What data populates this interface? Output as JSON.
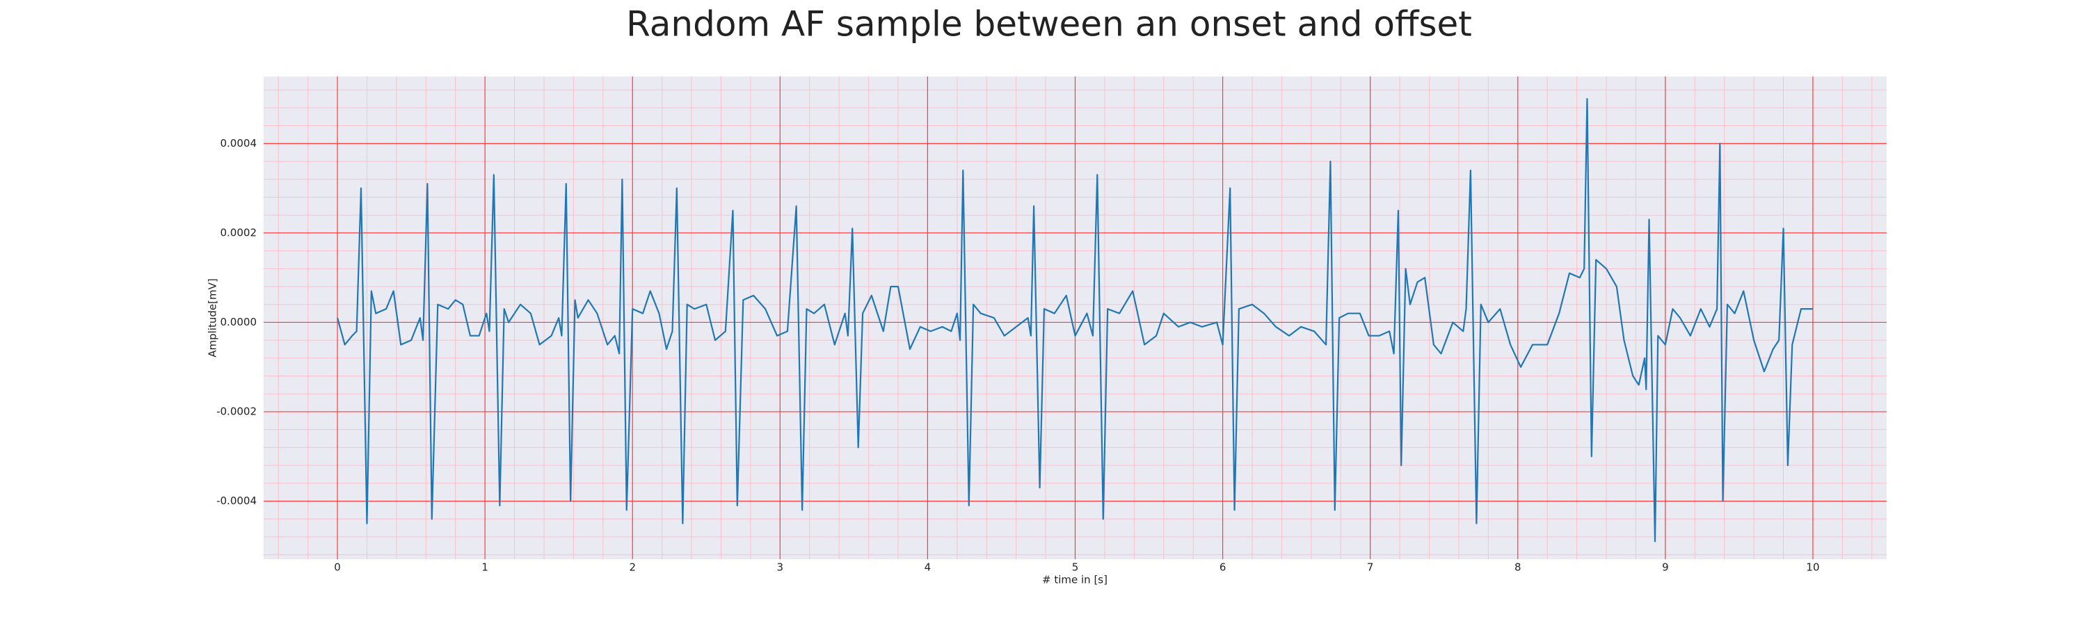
{
  "chart_data": {
    "type": "line",
    "title": "Random AF sample between an onset and offset",
    "xlabel": "# time in [s]",
    "ylabel": "Amplitude[mV]",
    "color": "#1f77b4",
    "background": "#eaeaf2",
    "grid": true,
    "grid_color": "#ff3b3b",
    "minor_grid": true,
    "minor_grid_color": "#ffbfc8",
    "xlim": [
      -0.5,
      10.5
    ],
    "xticks": [
      0,
      1,
      2,
      3,
      4,
      5,
      6,
      7,
      8,
      9,
      10
    ],
    "ylim": [
      -0.00053,
      0.00055
    ],
    "yticks": [
      -0.0004,
      -0.0002,
      {
        "value": 0,
        "label": "0.0000"
      },
      0.0002,
      0.0004
    ],
    "x": [
      0,
      0.05,
      0.1,
      0.13,
      0.16,
      0.2,
      0.23,
      0.26,
      0.33,
      0.38,
      0.43,
      0.5,
      0.56,
      0.58,
      0.61,
      0.64,
      0.68,
      0.75,
      0.8,
      0.85,
      0.9,
      0.96,
      1.01,
      1.03,
      1.06,
      1.1,
      1.13,
      1.16,
      1.24,
      1.31,
      1.37,
      1.45,
      1.5,
      1.52,
      1.55,
      1.58,
      1.61,
      1.63,
      1.7,
      1.76,
      1.83,
      1.88,
      1.91,
      1.93,
      1.96,
      2.0,
      2.07,
      2.12,
      2.18,
      2.23,
      2.27,
      2.3,
      2.34,
      2.37,
      2.42,
      2.5,
      2.56,
      2.63,
      2.68,
      2.71,
      2.75,
      2.82,
      2.9,
      2.98,
      3.05,
      3.11,
      3.15,
      3.18,
      3.23,
      3.3,
      3.37,
      3.44,
      3.46,
      3.49,
      3.53,
      3.56,
      3.62,
      3.7,
      3.75,
      3.8,
      3.88,
      3.95,
      4.02,
      4.1,
      4.16,
      4.2,
      4.22,
      4.24,
      4.28,
      4.31,
      4.36,
      4.45,
      4.52,
      4.6,
      4.68,
      4.7,
      4.72,
      4.76,
      4.79,
      4.86,
      4.94,
      5.0,
      5.08,
      5.12,
      5.15,
      5.19,
      5.22,
      5.3,
      5.39,
      5.47,
      5.55,
      5.6,
      5.7,
      5.78,
      5.86,
      5.96,
      6.0,
      6.05,
      6.08,
      6.11,
      6.2,
      6.28,
      6.36,
      6.45,
      6.53,
      6.62,
      6.7,
      6.73,
      6.76,
      6.79,
      6.85,
      6.93,
      6.99,
      7.06,
      7.13,
      7.16,
      7.19,
      7.21,
      7.24,
      7.27,
      7.32,
      7.37,
      7.43,
      7.48,
      7.56,
      7.63,
      7.65,
      7.68,
      7.72,
      7.75,
      7.8,
      7.88,
      7.95,
      8.02,
      8.1,
      8.2,
      8.28,
      8.35,
      8.42,
      8.45,
      8.47,
      8.5,
      8.53,
      8.6,
      8.67,
      8.72,
      8.78,
      8.82,
      8.86,
      8.87,
      8.89,
      8.93,
      8.95,
      9.0,
      9.05,
      9.1,
      9.17,
      9.24,
      9.3,
      9.35,
      9.37,
      9.39,
      9.42,
      9.47,
      9.53,
      9.6,
      9.67,
      9.73,
      9.77,
      9.8,
      9.83,
      9.86,
      9.92,
      10.0
    ],
    "values": [
      1e-05,
      -5e-05,
      -3e-05,
      -2e-05,
      0.0003,
      -0.00045,
      7e-05,
      2e-05,
      3e-05,
      7e-05,
      -5e-05,
      -4e-05,
      1e-05,
      -4e-05,
      0.00031,
      -0.00044,
      4e-05,
      3e-05,
      5e-05,
      4e-05,
      -3e-05,
      -3e-05,
      2e-05,
      -2e-05,
      0.00033,
      -0.00041,
      3e-05,
      0,
      4e-05,
      2e-05,
      -5e-05,
      -3e-05,
      1e-05,
      -3e-05,
      0.00031,
      -0.0004,
      5e-05,
      1e-05,
      5e-05,
      2e-05,
      -5e-05,
      -3e-05,
      -7e-05,
      0.00032,
      -0.00042,
      3e-05,
      2e-05,
      7e-05,
      2e-05,
      -6e-05,
      -2e-05,
      0.0003,
      -0.00045,
      4e-05,
      3e-05,
      4e-05,
      -4e-05,
      -2e-05,
      0.00025,
      -0.00041,
      5e-05,
      6e-05,
      3e-05,
      -3e-05,
      -2e-05,
      0.00026,
      -0.00042,
      3e-05,
      2e-05,
      4e-05,
      -5e-05,
      2e-05,
      -3e-05,
      0.00021,
      -0.00028,
      2e-05,
      6e-05,
      -2e-05,
      8e-05,
      8e-05,
      -6e-05,
      -1e-05,
      -2e-05,
      -1e-05,
      -2e-05,
      2e-05,
      -4e-05,
      0.00034,
      -0.00041,
      4e-05,
      2e-05,
      1e-05,
      -3e-05,
      -1e-05,
      1e-05,
      -3e-05,
      0.00026,
      -0.00037,
      3e-05,
      2e-05,
      6e-05,
      -3e-05,
      2e-05,
      -3e-05,
      0.00033,
      -0.00044,
      3e-05,
      2e-05,
      7e-05,
      -5e-05,
      -3e-05,
      2e-05,
      -1e-05,
      0,
      -1e-05,
      0,
      -5e-05,
      0.0003,
      -0.00042,
      3e-05,
      4e-05,
      2e-05,
      -1e-05,
      -3e-05,
      -1e-05,
      -2e-05,
      -5e-05,
      0.00036,
      -0.00042,
      1e-05,
      2e-05,
      2e-05,
      -3e-05,
      -3e-05,
      -2e-05,
      -7e-05,
      0.00025,
      -0.00032,
      0.00012,
      4e-05,
      9e-05,
      0.0001,
      -5e-05,
      -7e-05,
      0,
      -2e-05,
      3e-05,
      0.00034,
      -0.00045,
      4e-05,
      0,
      3e-05,
      -5e-05,
      -0.0001,
      -5e-05,
      -5e-05,
      2e-05,
      0.00011,
      0.0001,
      0.00012,
      0.0005,
      -0.0003,
      0.00014,
      0.00012,
      8e-05,
      -4e-05,
      -0.00012,
      -0.00014,
      -8e-05,
      -0.00015,
      0.00023,
      -0.00049,
      -3e-05,
      -5e-05,
      3e-05,
      1e-05,
      -3e-05,
      3e-05,
      -1e-05,
      3e-05,
      0.0004,
      -0.0004,
      4e-05,
      2e-05,
      7e-05,
      -4e-05,
      -0.00011,
      -6e-05,
      -4e-05,
      0.00021,
      -0.00032,
      -5e-05,
      3e-05,
      3e-05
    ]
  }
}
